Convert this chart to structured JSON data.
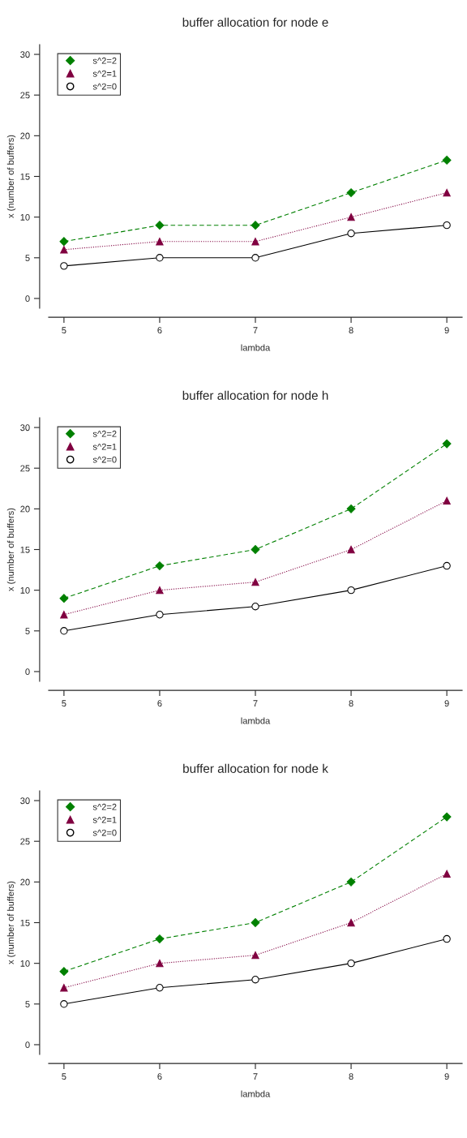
{
  "chart_data": [
    {
      "type": "line",
      "title": "buffer allocation for node e",
      "xlabel": "lambda",
      "ylabel": "x (number of buffers)",
      "x": [
        5,
        6,
        7,
        8,
        9
      ],
      "xlim": [
        4.84,
        9.16
      ],
      "ylim": [
        -1.2,
        31.2
      ],
      "xticks": [
        5,
        6,
        7,
        8,
        9
      ],
      "yticks": [
        0,
        5,
        10,
        15,
        20,
        25,
        30
      ],
      "grid": false,
      "legend": "top left",
      "series": [
        {
          "name": "s^2=2",
          "color": "#008000",
          "values": [
            7,
            9,
            9,
            13,
            17
          ],
          "marker": "diamond",
          "line_style": "dashed"
        },
        {
          "name": "s^2=1",
          "color": "#800040",
          "values": [
            6,
            7,
            7,
            10,
            13
          ],
          "marker": "triangle",
          "line_style": "dotted"
        },
        {
          "name": "s^2=0",
          "color": "#000000",
          "values": [
            4,
            5,
            5,
            8,
            9
          ],
          "marker": "circle",
          "line_style": "solid"
        }
      ]
    },
    {
      "type": "line",
      "title": "buffer allocation for node h",
      "xlabel": "lambda",
      "ylabel": "x (number of buffers)",
      "x": [
        5,
        6,
        7,
        8,
        9
      ],
      "xlim": [
        4.84,
        9.16
      ],
      "ylim": [
        -1.2,
        31.2
      ],
      "xticks": [
        5,
        6,
        7,
        8,
        9
      ],
      "yticks": [
        0,
        5,
        10,
        15,
        20,
        25,
        30
      ],
      "grid": false,
      "legend": "top left",
      "series": [
        {
          "name": "s^2=2",
          "color": "#008000",
          "values": [
            9,
            13,
            15,
            20,
            28
          ],
          "marker": "diamond",
          "line_style": "dashed"
        },
        {
          "name": "s^2=1",
          "color": "#800040",
          "values": [
            7,
            10,
            11,
            15,
            21
          ],
          "marker": "triangle",
          "line_style": "dotted"
        },
        {
          "name": "s^2=0",
          "color": "#000000",
          "values": [
            5,
            7,
            8,
            10,
            13
          ],
          "marker": "circle",
          "line_style": "solid"
        }
      ]
    },
    {
      "type": "line",
      "title": "buffer allocation for node k",
      "xlabel": "lambda",
      "ylabel": "x (number of buffers)",
      "x": [
        5,
        6,
        7,
        8,
        9
      ],
      "xlim": [
        4.84,
        9.16
      ],
      "ylim": [
        -1.2,
        31.2
      ],
      "xticks": [
        5,
        6,
        7,
        8,
        9
      ],
      "yticks": [
        0,
        5,
        10,
        15,
        20,
        25,
        30
      ],
      "grid": false,
      "legend": "top left",
      "series": [
        {
          "name": "s^2=2",
          "color": "#008000",
          "values": [
            9,
            13,
            15,
            20,
            28
          ],
          "marker": "diamond",
          "line_style": "dashed"
        },
        {
          "name": "s^2=1",
          "color": "#800040",
          "values": [
            7,
            10,
            11,
            15,
            21
          ],
          "marker": "triangle",
          "line_style": "dotted"
        },
        {
          "name": "s^2=0",
          "color": "#000000",
          "values": [
            5,
            7,
            8,
            10,
            13
          ],
          "marker": "circle",
          "line_style": "solid"
        }
      ]
    }
  ]
}
